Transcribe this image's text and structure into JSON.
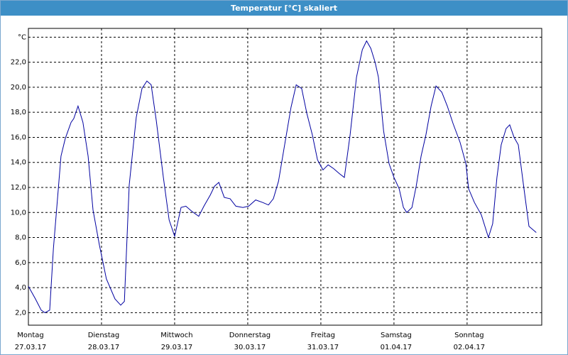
{
  "window_title": "Temperatur [°C] skaliert",
  "chart_data": {
    "type": "line",
    "x": [
      0,
      2.3,
      4.2,
      5.4,
      7.0,
      8.2,
      10.7,
      12.1,
      14.0,
      14.9,
      16.3,
      17.9,
      19.6,
      21.2,
      23.3,
      25.6,
      28.4,
      30.3,
      31.5,
      33.1,
      35.4,
      37.3,
      38.9,
      40.3,
      42.0,
      44.3,
      46.2,
      48.0,
      50.1,
      51.7,
      53.6,
      55.9,
      57.6,
      59.7,
      61.1,
      62.5,
      64.3,
      66.2,
      68.1,
      70.4,
      72.3,
      74.6,
      76.9,
      78.8,
      80.4,
      82.1,
      83.9,
      86.2,
      87.9,
      89.7,
      91.4,
      93.2,
      94.9,
      96.7,
      98.4,
      100.2,
      102.1,
      103.7,
      105.6,
      107.7,
      109.6,
      111.0,
      112.4,
      113.8,
      114.9,
      116.6,
      118.4,
      120.0,
      121.7,
      123.1,
      124.2,
      125.9,
      127.3,
      128.9,
      130.5,
      132.2,
      133.8,
      135.7,
      137.5,
      139.4,
      141.7,
      143.6,
      144.5,
      146.4,
      148.7,
      151.0,
      152.4,
      153.8,
      155.2,
      156.8,
      158.0,
      159.4,
      160.8,
      162.5,
      164.3,
      166.7
    ],
    "series": [
      {
        "color": "#0000a0",
        "values": [
          4.1,
          3.1,
          2.2,
          2.0,
          2.2,
          7.1,
          14.5,
          15.9,
          17.2,
          17.5,
          18.5,
          17.2,
          14.5,
          10.2,
          7.4,
          4.7,
          3.1,
          2.6,
          2.9,
          12.2,
          17.6,
          19.9,
          20.5,
          20.2,
          17.3,
          12.8,
          9.4,
          8.1,
          10.4,
          10.5,
          10.1,
          9.7,
          10.5,
          11.4,
          12.1,
          12.4,
          11.2,
          11.1,
          10.5,
          10.4,
          10.5,
          11.0,
          10.8,
          10.6,
          11.1,
          12.5,
          15.1,
          18.4,
          20.2,
          19.9,
          17.9,
          16.2,
          14.2,
          13.4,
          13.8,
          13.5,
          13.1,
          12.8,
          16.2,
          20.8,
          23.0,
          23.7,
          23.1,
          22.0,
          20.8,
          16.5,
          13.9,
          12.8,
          11.9,
          10.4,
          10.0,
          10.4,
          12.1,
          14.5,
          16.2,
          18.5,
          20.1,
          19.6,
          18.5,
          17.1,
          15.6,
          13.9,
          11.9,
          10.8,
          9.8,
          8.0,
          9.1,
          12.8,
          15.4,
          16.7,
          17.0,
          16.0,
          15.4,
          12.2,
          8.9,
          8.4
        ]
      }
    ],
    "xlim": [
      0,
      168.5
    ],
    "ylim": [
      1,
      24.7
    ],
    "yticks": [
      {
        "value": 2,
        "label": "2,0"
      },
      {
        "value": 4,
        "label": "4,0"
      },
      {
        "value": 6,
        "label": "6,0"
      },
      {
        "value": 8,
        "label": "8,0"
      },
      {
        "value": 10,
        "label": "10,0"
      },
      {
        "value": 12,
        "label": "12,0"
      },
      {
        "value": 14,
        "label": "14,0"
      },
      {
        "value": 16,
        "label": "16,0"
      },
      {
        "value": 18,
        "label": "18,0"
      },
      {
        "value": 20,
        "label": "20,0"
      },
      {
        "value": 22,
        "label": "22,0"
      },
      {
        "value": 24,
        "label": "°C"
      }
    ],
    "xticks": [
      {
        "value": 0,
        "label": "Montag",
        "date": "27.03.17"
      },
      {
        "value": 24,
        "label": "Dienstag",
        "date": "28.03.17"
      },
      {
        "value": 48,
        "label": "Mittwoch",
        "date": "29.03.17"
      },
      {
        "value": 72,
        "label": "Donnerstag",
        "date": "30.03.17"
      },
      {
        "value": 96,
        "label": "Freitag",
        "date": "31.03.17"
      },
      {
        "value": 120,
        "label": "Samstag",
        "date": "01.04.17"
      },
      {
        "value": 144,
        "label": "Sonntag",
        "date": "02.04.17"
      }
    ],
    "grid": true
  }
}
